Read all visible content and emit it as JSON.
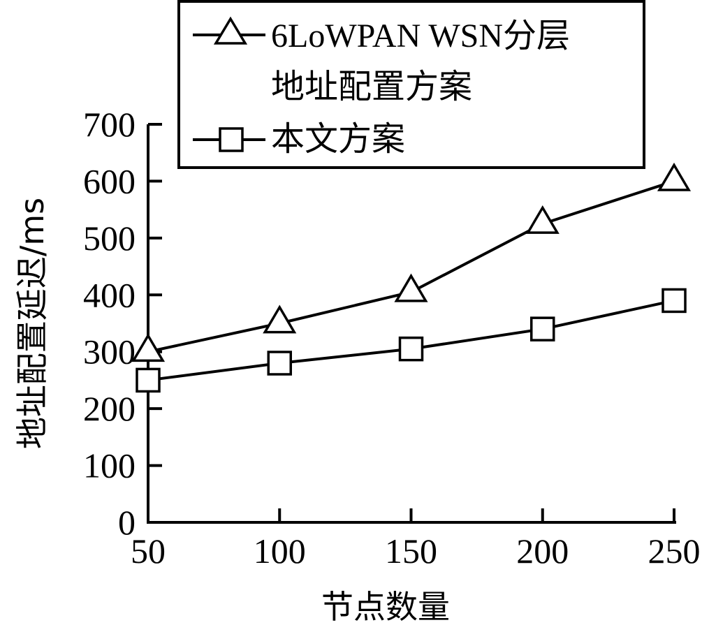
{
  "chart_data": {
    "type": "line",
    "title": "",
    "xlabel": "节点数量",
    "ylabel": "地址配置延迟/ms",
    "x": [
      50,
      100,
      150,
      200,
      250
    ],
    "xlim": [
      50,
      250
    ],
    "ylim": [
      0,
      700
    ],
    "xticks": [
      "50",
      "100",
      "150",
      "200",
      "250"
    ],
    "yticks": [
      "0",
      "100",
      "200",
      "300",
      "400",
      "500",
      "600",
      "700"
    ],
    "grid": false,
    "legend_position": "top",
    "series": [
      {
        "name": "6LoWPAN WSN分层地址配置方案",
        "legend_lines": [
          "6LoWPAN WSN分层",
          "地址配置方案"
        ],
        "marker": "triangle",
        "values": [
          300,
          350,
          405,
          525,
          600
        ]
      },
      {
        "name": "本文方案",
        "legend_lines": [
          "本文方案"
        ],
        "marker": "square",
        "values": [
          250,
          280,
          305,
          340,
          390
        ]
      }
    ]
  }
}
